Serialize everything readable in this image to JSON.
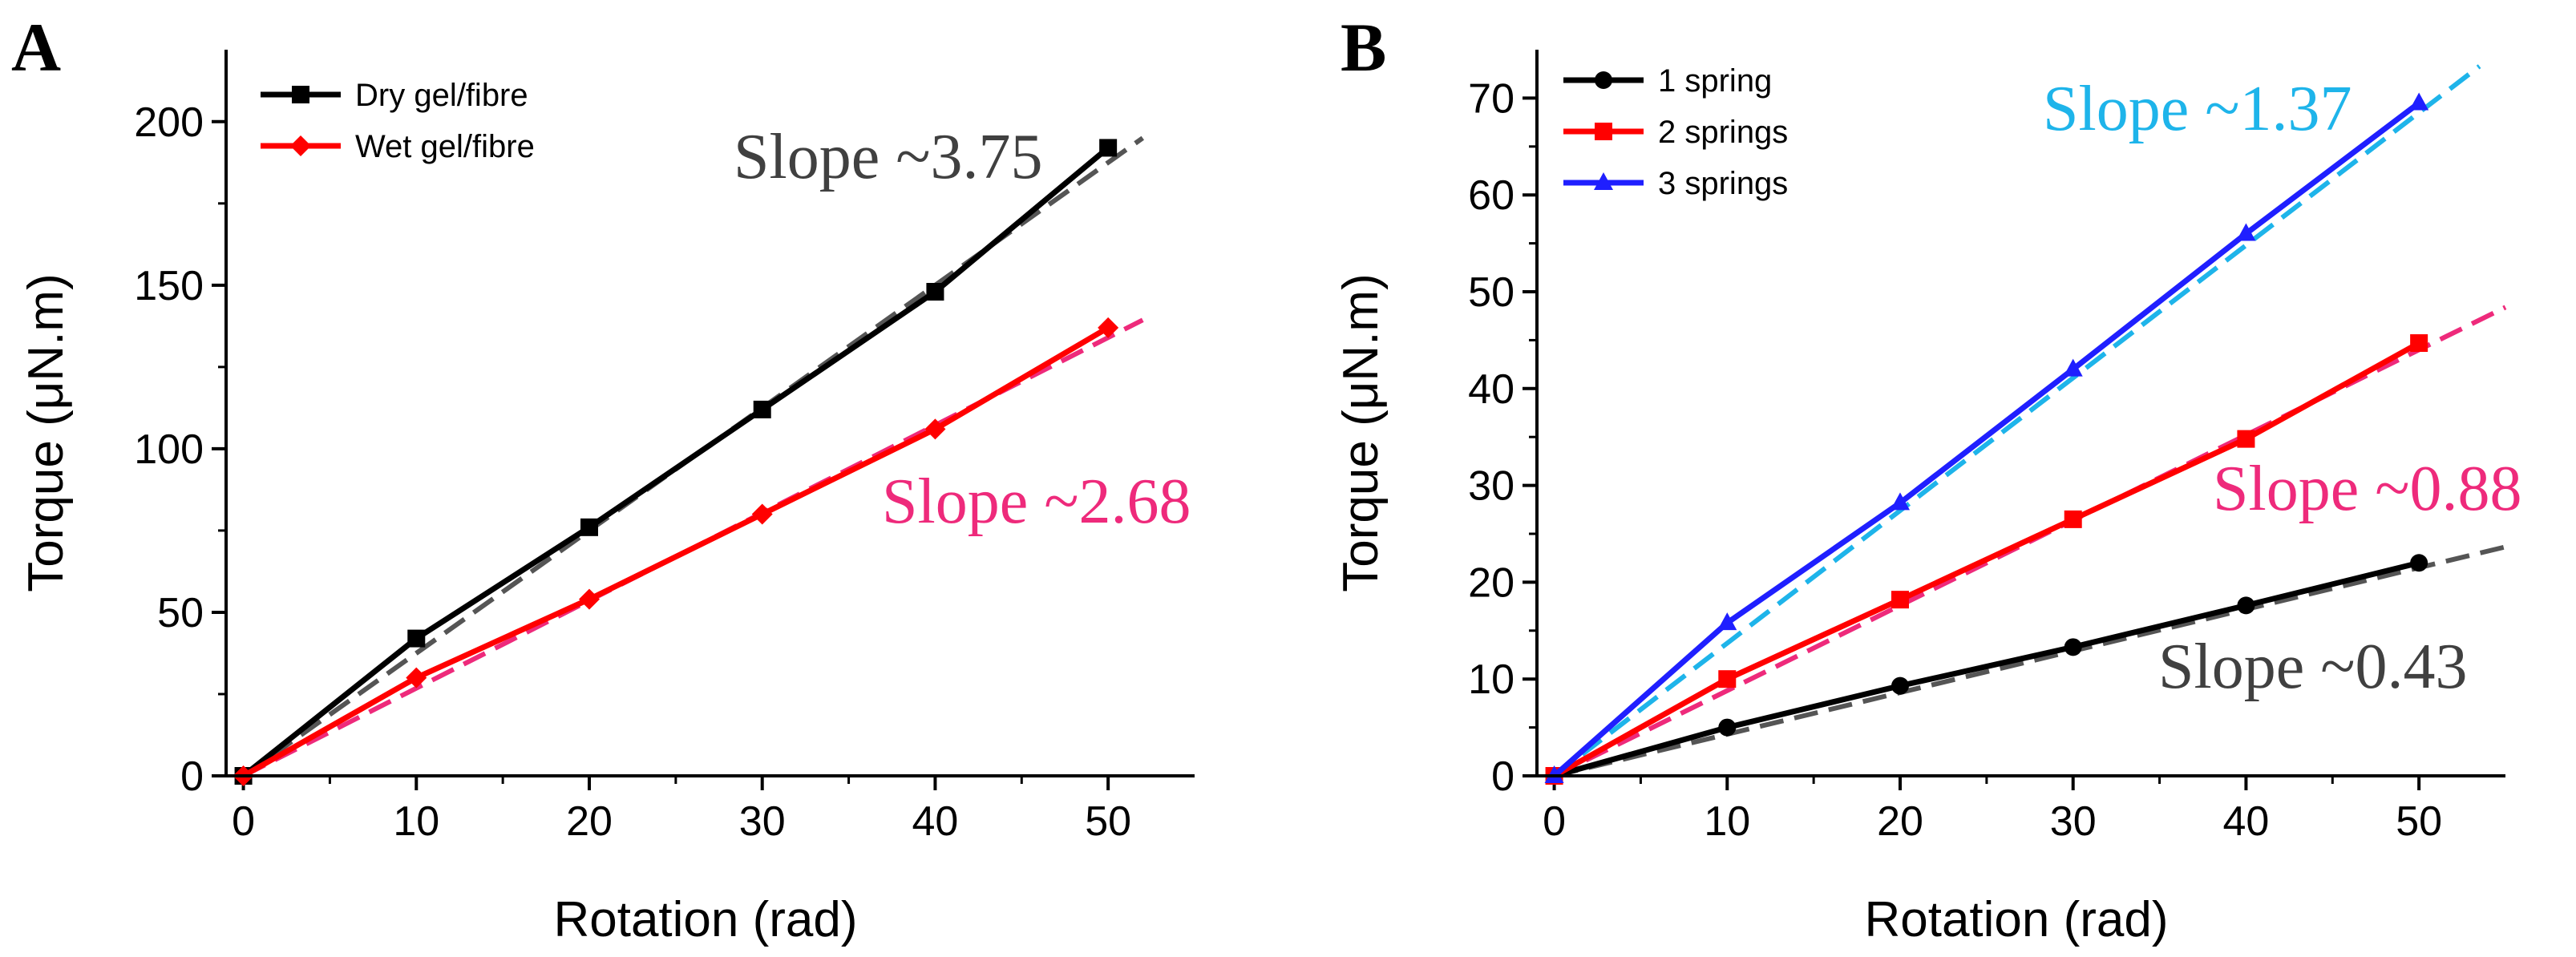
{
  "panels": {
    "a": {
      "label": "A"
    },
    "b": {
      "label": "B"
    }
  },
  "chart_data": [
    {
      "type": "line",
      "panel": "A",
      "title": "",
      "xlabel": "Rotation (rad)",
      "ylabel": "Torque (μN.m)",
      "xlim": [
        -1,
        55
      ],
      "ylim": [
        0,
        222
      ],
      "xticks": [
        0,
        10,
        20,
        30,
        40,
        50
      ],
      "yticks": [
        0,
        50,
        100,
        150,
        200
      ],
      "xtick_labels": [
        "0",
        "10",
        "20",
        "30",
        "40",
        "50"
      ],
      "ytick_labels": [
        "0",
        "50",
        "100",
        "150",
        "200"
      ],
      "grid": false,
      "legend_position": "top-left",
      "x": [
        0,
        10,
        20,
        30,
        40,
        50
      ],
      "series": [
        {
          "name": "Dry gel/fibre",
          "color": "#000000",
          "marker": "square",
          "values": [
            0,
            42,
            76,
            112,
            148,
            192
          ]
        },
        {
          "name": "Wet gel/fibre",
          "color": "#ff0000",
          "marker": "diamond",
          "values": [
            0,
            30,
            54,
            80,
            106,
            137
          ]
        }
      ],
      "fits": [
        {
          "slope": 3.75,
          "x_end": 52,
          "color": "#555555"
        },
        {
          "slope": 2.68,
          "x_end": 52,
          "color": "#ee2a7b"
        }
      ],
      "annotations": [
        {
          "text": "Slope ~3.75",
          "color": "#404040"
        },
        {
          "text": "Slope ~2.68",
          "color": "#ee2a7b"
        }
      ]
    },
    {
      "type": "line",
      "panel": "B",
      "title": "",
      "xlabel": "Rotation (rad)",
      "ylabel": "Torque (μN.m)",
      "xlim": [
        -1,
        55
      ],
      "ylim": [
        0,
        75
      ],
      "xticks": [
        0,
        10,
        20,
        30,
        40,
        50
      ],
      "yticks": [
        0,
        10,
        20,
        30,
        40,
        50,
        60,
        70
      ],
      "xtick_labels": [
        "0",
        "10",
        "20",
        "30",
        "40",
        "50"
      ],
      "ytick_labels": [
        "0",
        "10",
        "20",
        "30",
        "40",
        "50",
        "60",
        "70"
      ],
      "grid": false,
      "legend_position": "top-left",
      "x": [
        0,
        10,
        20,
        30,
        40,
        50
      ],
      "series": [
        {
          "name": "1 spring",
          "color": "#000000",
          "marker": "circle",
          "values": [
            0,
            5,
            9.3,
            13.3,
            17.6,
            22
          ]
        },
        {
          "name": "2 springs",
          "color": "#ff0000",
          "marker": "square",
          "values": [
            0,
            10,
            18.2,
            26.5,
            34.8,
            44.7
          ]
        },
        {
          "name": "3 springs",
          "color": "#1f1fff",
          "marker": "triangle",
          "values": [
            0,
            15.8,
            28.2,
            42,
            56,
            69.5
          ]
        }
      ],
      "fits": [
        {
          "slope": 0.43,
          "x_end": 55,
          "color": "#555555"
        },
        {
          "slope": 0.88,
          "x_end": 55,
          "color": "#ee2a7b"
        },
        {
          "slope": 1.37,
          "x_end": 53.5,
          "color": "#1eb4ea"
        }
      ],
      "annotations": [
        {
          "text": "Slope ~1.37",
          "color": "#1eb4ea"
        },
        {
          "text": "Slope ~0.88",
          "color": "#ee2a7b"
        },
        {
          "text": "Slope ~0.43",
          "color": "#404040"
        }
      ]
    }
  ]
}
